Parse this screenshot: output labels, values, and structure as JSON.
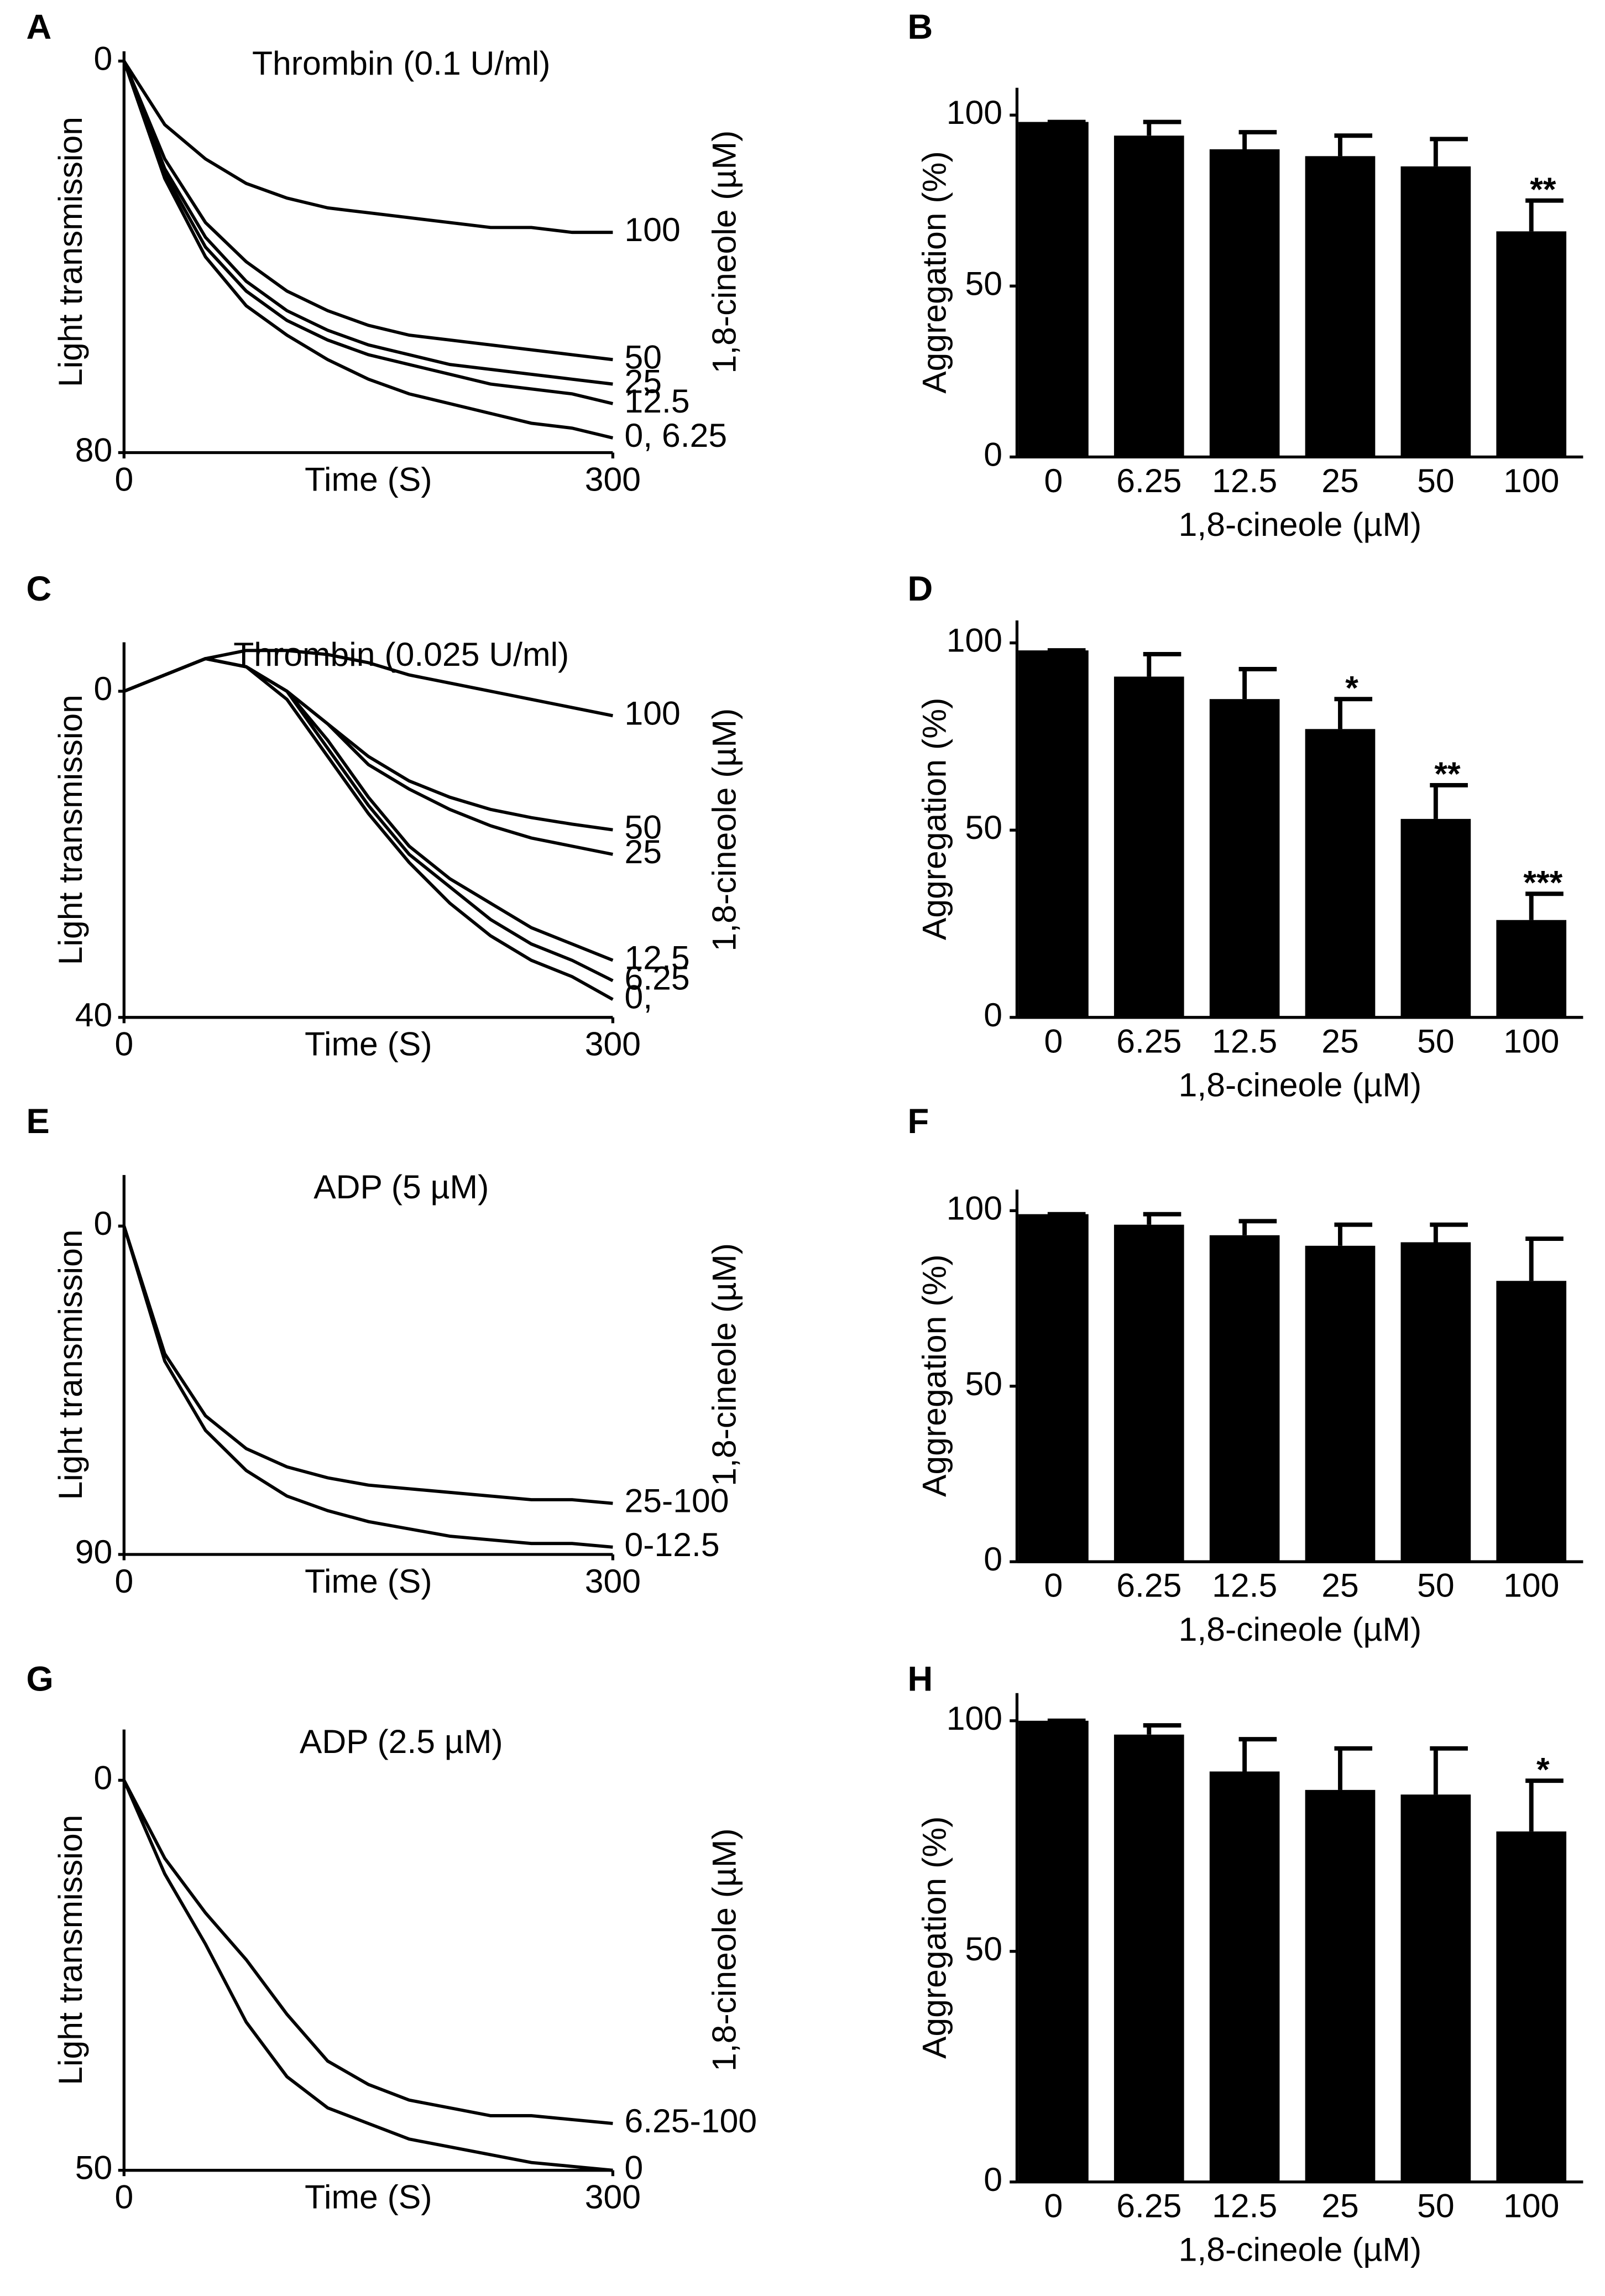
{
  "chart_data": [
    {
      "type": "line",
      "panel": "A",
      "title": "Thrombin (0.1 U/ml)",
      "xlabel": "Time (S)",
      "ylabel": "Light transmission",
      "right_label": "1,8-cineole (µM)",
      "x": [
        0,
        25,
        50,
        75,
        100,
        125,
        150,
        175,
        200,
        225,
        250,
        275,
        300
      ],
      "xlim": [
        0,
        300
      ],
      "xticks": [
        0,
        300
      ],
      "ylim": [
        -2,
        80
      ],
      "yticks": [
        0,
        80
      ],
      "y_inverted": true,
      "series": [
        {
          "name": "100",
          "color": "#000",
          "values": [
            0,
            13,
            20,
            25,
            28,
            30,
            31,
            32,
            33,
            34,
            34,
            35,
            35
          ]
        },
        {
          "name": "50",
          "color": "#000",
          "values": [
            0,
            20,
            33,
            41,
            47,
            51,
            54,
            56,
            57,
            58,
            59,
            60,
            61
          ]
        },
        {
          "name": "25",
          "color": "#000",
          "values": [
            0,
            22,
            36,
            45,
            51,
            55,
            58,
            60,
            62,
            63,
            64,
            65,
            66
          ]
        },
        {
          "name": "12.5",
          "color": "#000",
          "values": [
            0,
            23,
            38,
            47,
            53,
            57,
            60,
            62,
            64,
            66,
            67,
            68,
            70
          ]
        },
        {
          "name": "0, 6.25",
          "color": "#000",
          "values": [
            0,
            24,
            40,
            50,
            56,
            61,
            65,
            68,
            70,
            72,
            74,
            75,
            77
          ]
        }
      ]
    },
    {
      "type": "bar",
      "panel": "B",
      "xlabel": "1,8-cineole (µM)",
      "ylabel": "Aggregation (%)",
      "categories": [
        "0",
        "6.25",
        "12.5",
        "25",
        "50",
        "100"
      ],
      "values": [
        98,
        94,
        90,
        88,
        85,
        66
      ],
      "errors": [
        0,
        4,
        5,
        6,
        8,
        9
      ],
      "color": "#000",
      "ylim": [
        0,
        108
      ],
      "yticks": [
        0,
        50,
        100
      ],
      "annotations": [
        {
          "index": 5,
          "text": "**"
        }
      ]
    },
    {
      "type": "line",
      "panel": "C",
      "title": "Thrombin (0.025 U/ml)",
      "xlabel": "Time (S)",
      "ylabel": "Light transmission",
      "right_label": "1,8-cineole (µM)",
      "x": [
        0,
        25,
        50,
        75,
        100,
        125,
        150,
        175,
        200,
        225,
        250,
        275,
        300
      ],
      "xlim": [
        0,
        300
      ],
      "xticks": [
        0,
        300
      ],
      "ylim": [
        -6,
        40
      ],
      "yticks": [
        0,
        40
      ],
      "y_inverted": true,
      "series": [
        {
          "name": "100",
          "color": "#000",
          "values": [
            0,
            -2,
            -4,
            -5,
            -5,
            -4.5,
            -3.5,
            -2,
            -1,
            0,
            1,
            2,
            3
          ]
        },
        {
          "name": "50",
          "color": "#000",
          "values": [
            0,
            -2,
            -4,
            -3,
            0,
            4,
            8,
            11,
            13,
            14.5,
            15.5,
            16.3,
            17
          ]
        },
        {
          "name": "25",
          "color": "#000",
          "values": [
            0,
            -2,
            -4,
            -3,
            0,
            4,
            9,
            12,
            14.5,
            16.5,
            18,
            19,
            20
          ]
        },
        {
          "name": "12.5",
          "color": "#000",
          "values": [
            0,
            -2,
            -4,
            -3,
            0,
            6,
            13,
            19,
            23,
            26,
            29,
            31,
            33
          ]
        },
        {
          "name": "6.25",
          "color": "#000",
          "values": [
            0,
            -2,
            -4,
            -3,
            0,
            7,
            14,
            20,
            24,
            28,
            31,
            33,
            35.5
          ]
        },
        {
          "name": "0,",
          "color": "#000",
          "values": [
            0,
            -2,
            -4,
            -3,
            1,
            8,
            15,
            21,
            26,
            30,
            33,
            35,
            37.8
          ]
        }
      ]
    },
    {
      "type": "bar",
      "panel": "D",
      "xlabel": "1,8-cineole (µM)",
      "ylabel": "Aggregation (%)",
      "categories": [
        "0",
        "6.25",
        "12.5",
        "25",
        "50",
        "100"
      ],
      "values": [
        98,
        91,
        85,
        77,
        53,
        26
      ],
      "errors": [
        0,
        6,
        8,
        8,
        9,
        7
      ],
      "color": "#000",
      "ylim": [
        0,
        106
      ],
      "yticks": [
        0,
        50,
        100
      ],
      "annotations": [
        {
          "index": 3,
          "text": "*"
        },
        {
          "index": 4,
          "text": "**"
        },
        {
          "index": 5,
          "text": "***"
        }
      ]
    },
    {
      "type": "line",
      "panel": "E",
      "title": "ADP (5 µM)",
      "xlabel": "Time (S)",
      "ylabel": "Light transmission",
      "right_label": "1,8-cineole (µM)",
      "x": [
        0,
        25,
        50,
        75,
        100,
        125,
        150,
        175,
        200,
        225,
        250,
        275,
        300
      ],
      "xlim": [
        0,
        300
      ],
      "xticks": [
        0,
        300
      ],
      "ylim": [
        -14,
        90
      ],
      "yticks": [
        0,
        90
      ],
      "y_inverted": true,
      "series": [
        {
          "name": "25-100",
          "color": "#000",
          "values": [
            0,
            35,
            52,
            61,
            66,
            69,
            71,
            72,
            73,
            74,
            75,
            75,
            76
          ]
        },
        {
          "name": "0-12.5",
          "color": "#000",
          "values": [
            0,
            37,
            56,
            67,
            74,
            78,
            81,
            83,
            85,
            86,
            87,
            87,
            88
          ]
        }
      ]
    },
    {
      "type": "bar",
      "panel": "F",
      "xlabel": "1,8-cineole (µM)",
      "ylabel": "Aggregation (%)",
      "categories": [
        "0",
        "6.25",
        "12.5",
        "25",
        "50",
        "100"
      ],
      "values": [
        99,
        96,
        93,
        90,
        91,
        80
      ],
      "errors": [
        0,
        3,
        4,
        6,
        5,
        12
      ],
      "color": "#000",
      "ylim": [
        0,
        106
      ],
      "yticks": [
        0,
        50,
        100
      ],
      "annotations": []
    },
    {
      "type": "line",
      "panel": "G",
      "title": "ADP (2.5 µM)",
      "xlabel": "Time (S)",
      "ylabel": "Light transmission",
      "right_label": "1,8-cineole (µM)",
      "x": [
        0,
        25,
        50,
        75,
        100,
        125,
        150,
        175,
        200,
        225,
        250,
        275,
        300
      ],
      "xlim": [
        0,
        300
      ],
      "xticks": [
        0,
        300
      ],
      "ylim": [
        -6.5,
        50
      ],
      "yticks": [
        0,
        50
      ],
      "y_inverted": true,
      "series": [
        {
          "name": "6.25-100",
          "color": "#000",
          "values": [
            0,
            10,
            17,
            23,
            30,
            36,
            39,
            41,
            42,
            43,
            43,
            43.5,
            44
          ]
        },
        {
          "name": "0",
          "color": "#000",
          "values": [
            0,
            12,
            21,
            31,
            38,
            42,
            44,
            46,
            47,
            48,
            49,
            49.5,
            50
          ]
        }
      ]
    },
    {
      "type": "bar",
      "panel": "H",
      "xlabel": "1,8-cineole (µM)",
      "ylabel": "Aggregation (%)",
      "categories": [
        "0",
        "6.25",
        "12.5",
        "25",
        "50",
        "100"
      ],
      "values": [
        100,
        97,
        89,
        85,
        84,
        76
      ],
      "errors": [
        0,
        2,
        7,
        9,
        10,
        11
      ],
      "color": "#000",
      "ylim": [
        0,
        106
      ],
      "yticks": [
        0,
        50,
        100
      ],
      "annotations": [
        {
          "index": 5,
          "text": "*"
        }
      ]
    }
  ]
}
